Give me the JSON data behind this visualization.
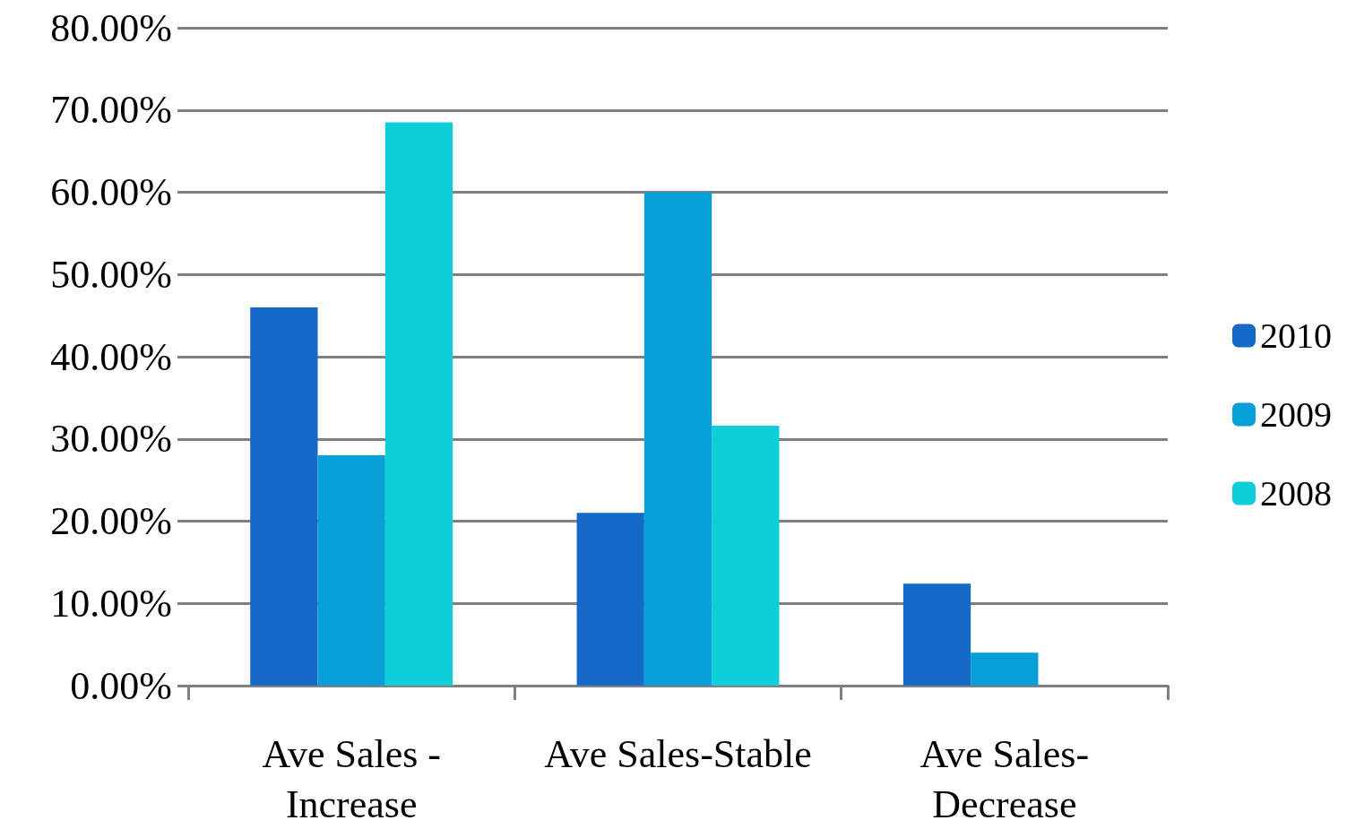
{
  "chart_data": {
    "type": "bar",
    "categories": [
      "Ave Sales - Increase",
      "Ave Sales-Stable",
      "Ave Sales-Decrease"
    ],
    "series": [
      {
        "name": "2010",
        "color": "#1569c7",
        "values": [
          46,
          21,
          12.4
        ]
      },
      {
        "name": "2009",
        "color": "#069fd8",
        "values": [
          28,
          60,
          4
        ]
      },
      {
        "name": "2008",
        "color": "#0ecfd8",
        "values": [
          68.5,
          31.6,
          null
        ]
      }
    ],
    "ylim": [
      0,
      80
    ],
    "yticks": [
      {
        "value": 0,
        "label": "0.00%"
      },
      {
        "value": 10,
        "label": "10.00%"
      },
      {
        "value": 20,
        "label": "20.00%"
      },
      {
        "value": 30,
        "label": "30.00%"
      },
      {
        "value": 40,
        "label": "40.00%"
      },
      {
        "value": 50,
        "label": "50.00%"
      },
      {
        "value": 60,
        "label": "60.00%"
      },
      {
        "value": 70,
        "label": "70.00%"
      },
      {
        "value": 80,
        "label": "80.00%"
      }
    ],
    "grid": "y",
    "legend": "right"
  }
}
